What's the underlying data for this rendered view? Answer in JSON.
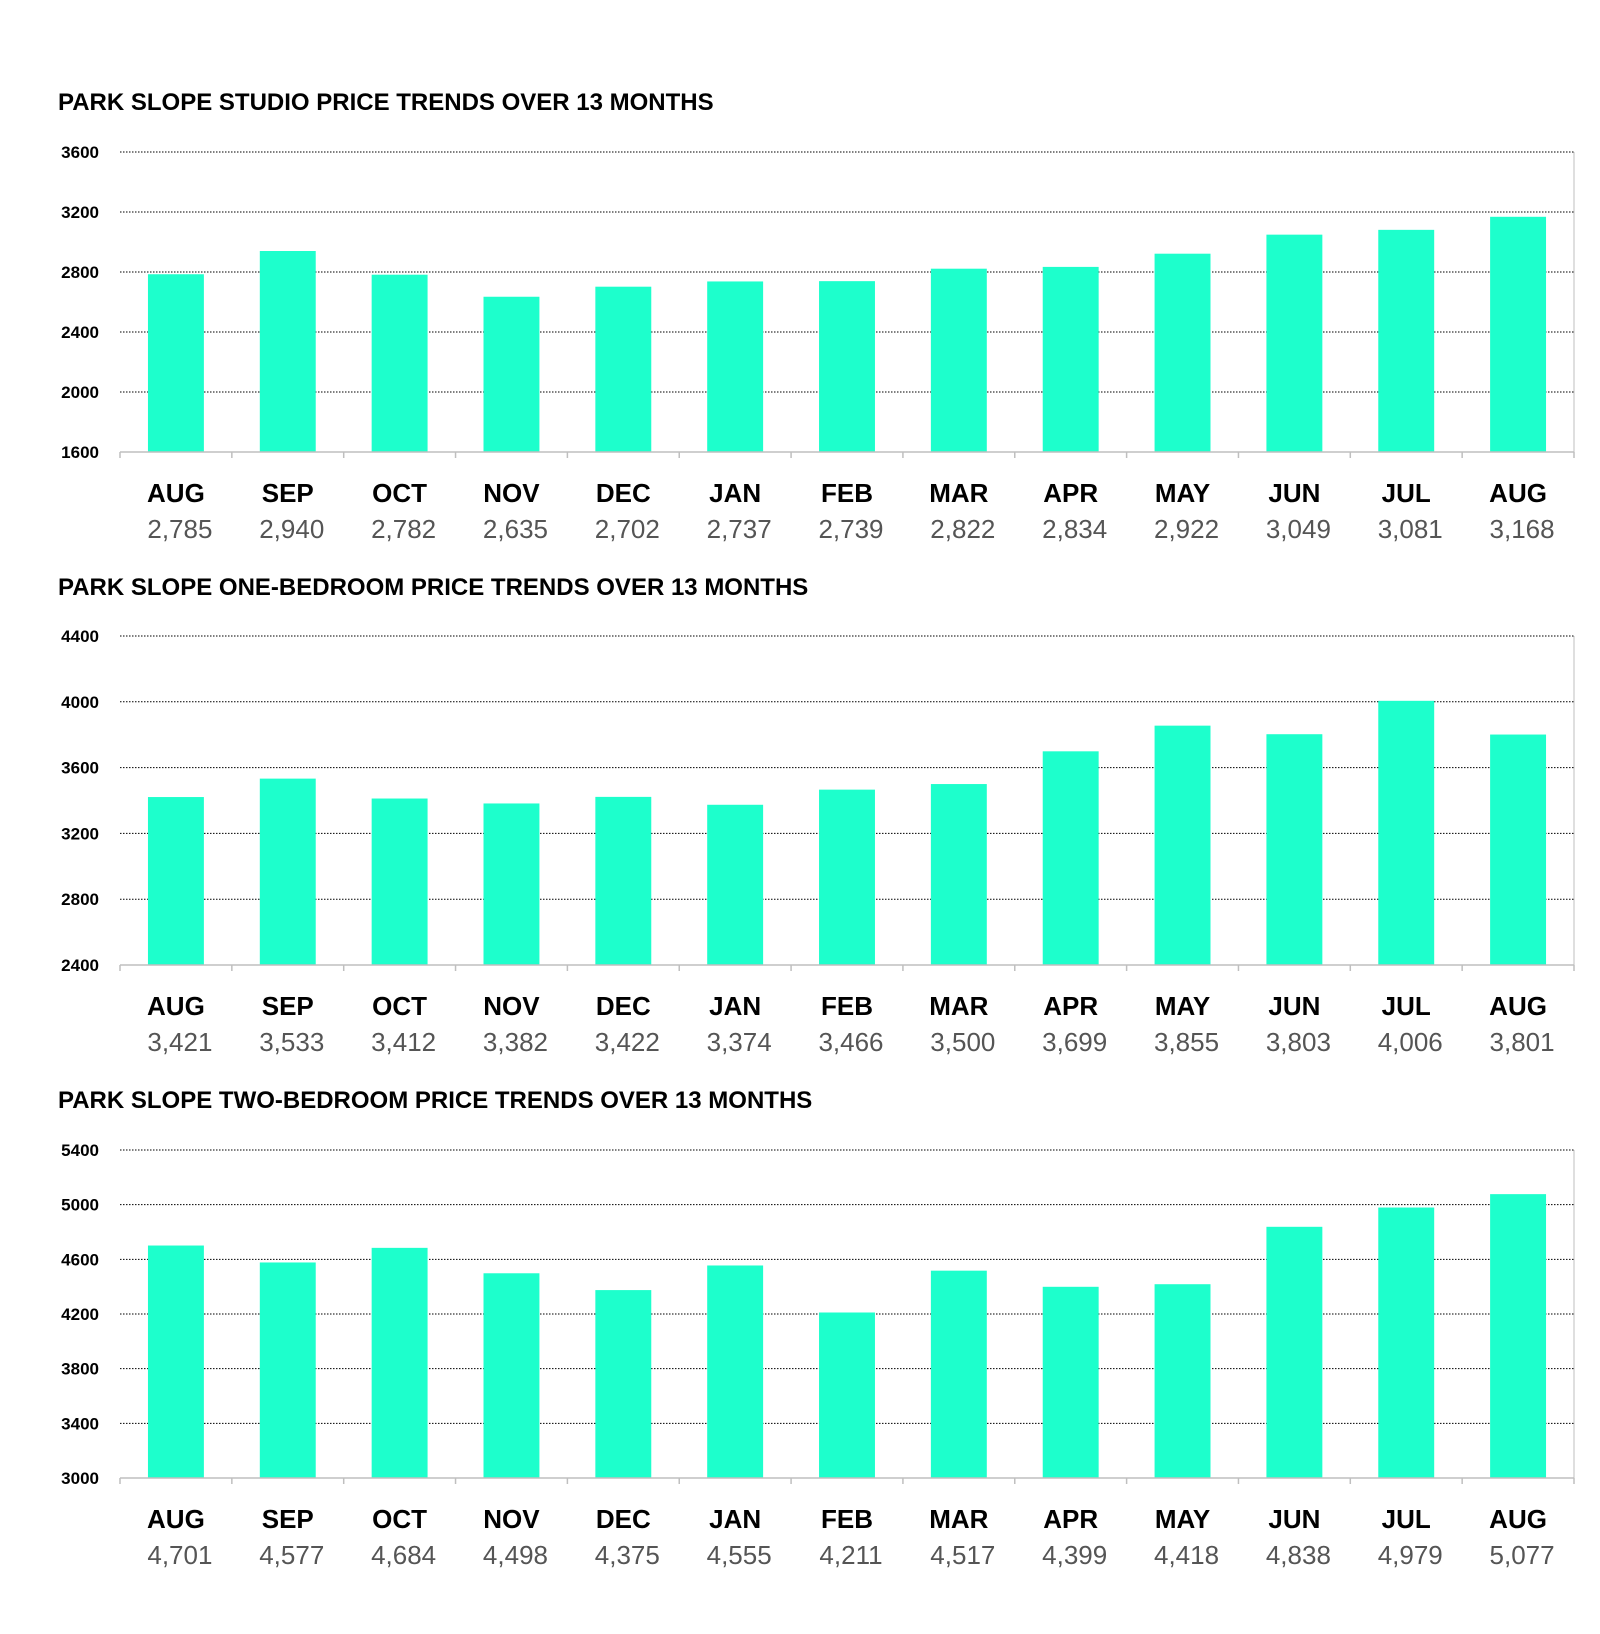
{
  "colors": {
    "bar": "#1dffcc",
    "grid": "#000000",
    "axis": "#bfbfbf",
    "value_text": "#555555"
  },
  "chart_data": [
    {
      "type": "bar",
      "title": "PARK SLOPE STUDIO PRICE TRENDS OVER 13 MONTHS",
      "categories": [
        "AUG",
        "SEP",
        "OCT",
        "NOV",
        "DEC",
        "JAN",
        "FEB",
        "MAR",
        "APR",
        "MAY",
        "JUN",
        "JUL",
        "AUG"
      ],
      "values": [
        2785,
        2940,
        2782,
        2635,
        2702,
        2737,
        2739,
        2822,
        2834,
        2922,
        3049,
        3081,
        3168
      ],
      "value_labels": [
        "2,785",
        "2,940",
        "2,782",
        "2,635",
        "2,702",
        "2,737",
        "2,739",
        "2,822",
        "2,834",
        "2,922",
        "3,049",
        "3,081",
        "3,168"
      ],
      "ylim": [
        1600,
        3600
      ],
      "yticks": [
        3600,
        3200,
        2800,
        2400,
        2000,
        1600
      ],
      "grid": true,
      "xlabel": "",
      "ylabel": ""
    },
    {
      "type": "bar",
      "title": "PARK SLOPE ONE-BEDROOM PRICE TRENDS OVER 13 MONTHS",
      "categories": [
        "AUG",
        "SEP",
        "OCT",
        "NOV",
        "DEC",
        "JAN",
        "FEB",
        "MAR",
        "APR",
        "MAY",
        "JUN",
        "JUL",
        "AUG"
      ],
      "values": [
        3421,
        3533,
        3412,
        3382,
        3422,
        3374,
        3466,
        3500,
        3699,
        3855,
        3803,
        4006,
        3801
      ],
      "value_labels": [
        "3,421",
        "3,533",
        "3,412",
        "3,382",
        "3,422",
        "3,374",
        "3,466",
        "3,500",
        "3,699",
        "3,855",
        "3,803",
        "4,006",
        "3,801"
      ],
      "ylim": [
        2400,
        4400
      ],
      "yticks": [
        4400,
        4000,
        3600,
        3200,
        2800,
        2400
      ],
      "grid": true,
      "xlabel": "",
      "ylabel": ""
    },
    {
      "type": "bar",
      "title": "PARK SLOPE TWO-BEDROOM PRICE TRENDS OVER 13 MONTHS",
      "categories": [
        "AUG",
        "SEP",
        "OCT",
        "NOV",
        "DEC",
        "JAN",
        "FEB",
        "MAR",
        "APR",
        "MAY",
        "JUN",
        "JUL",
        "AUG"
      ],
      "values": [
        4701,
        4577,
        4684,
        4498,
        4375,
        4555,
        4211,
        4517,
        4399,
        4418,
        4838,
        4979,
        5077
      ],
      "value_labels": [
        "4,701",
        "4,577",
        "4,684",
        "4,498",
        "4,375",
        "4,555",
        "4,211",
        "4,517",
        "4,399",
        "4,418",
        "4,838",
        "4,979",
        "5,077"
      ],
      "ylim": [
        3000,
        5400
      ],
      "yticks": [
        5400,
        5000,
        4600,
        4200,
        3800,
        3400,
        3000
      ],
      "grid": true,
      "xlabel": "",
      "ylabel": ""
    }
  ]
}
